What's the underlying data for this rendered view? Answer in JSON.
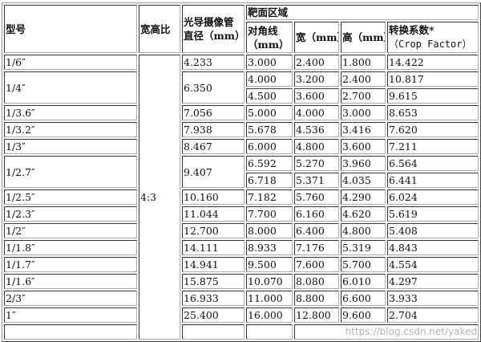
{
  "header": {
    "model": "型号",
    "aspect_ratio": "宽高比",
    "tube_diameter": "光导摄像管直径（mm）",
    "target_area": "靶面区域",
    "diagonal": "对角线（mm）",
    "width": "宽（mm）",
    "height": "高（mm）",
    "crop_factor_line1": "转换系数*",
    "crop_factor_line2": "（Crop Factor）"
  },
  "aspect_ratio_value": "4:3",
  "rows": [
    {
      "model": "1/6″",
      "tube": "4.233",
      "sub": [
        [
          "3.000",
          "2.400",
          "1.800",
          "14.422"
        ]
      ]
    },
    {
      "model": "1/4″",
      "tube": "6.350",
      "sub": [
        [
          "4.000",
          "3.200",
          "2.400",
          "10.817"
        ],
        [
          "4.500",
          "3.600",
          "2.700",
          "9.615"
        ]
      ]
    },
    {
      "model": "1/3.6″",
      "tube": "7.056",
      "sub": [
        [
          "5.000",
          "4.000",
          "3.000",
          "8.653"
        ]
      ]
    },
    {
      "model": "1/3.2″",
      "tube": "7.938",
      "sub": [
        [
          "5.678",
          "4.536",
          "3.416",
          "7.620"
        ]
      ]
    },
    {
      "model": "1/3″",
      "tube": "8.467",
      "sub": [
        [
          "6.000",
          "4.800",
          "3.600",
          "7.211"
        ]
      ]
    },
    {
      "model": "1/2.7″",
      "tube": "9.407",
      "sub": [
        [
          "6.592",
          "5.270",
          "3.960",
          "6.564"
        ],
        [
          "6.718",
          "5.371",
          "4.035",
          "6.441"
        ]
      ]
    },
    {
      "model": "1/2.5″",
      "tube": "10.160",
      "sub": [
        [
          "7.182",
          "5.760",
          "4.290",
          "6.024"
        ]
      ]
    },
    {
      "model": "1/2.3″",
      "tube": "11.044",
      "sub": [
        [
          "7.700",
          "6.160",
          "4.620",
          "5.619"
        ]
      ]
    },
    {
      "model": "1/2″",
      "tube": "12.700",
      "sub": [
        [
          "8.000",
          "6.400",
          "4.800",
          "5.408"
        ]
      ]
    },
    {
      "model": "1/1.8″",
      "tube": "14.111",
      "sub": [
        [
          "8.933",
          "7.176",
          "5.319",
          "4.843"
        ]
      ]
    },
    {
      "model": "1/1.7″",
      "tube": "14.941",
      "sub": [
        [
          "9.500",
          "7.600",
          "5.700",
          "4.554"
        ]
      ]
    },
    {
      "model": "1/1.6″",
      "tube": "15.875",
      "sub": [
        [
          "10.070",
          "8.080",
          "6.010",
          "4.297"
        ]
      ]
    },
    {
      "model": "2/3″",
      "tube": "16.933",
      "sub": [
        [
          "11.000",
          "8.800",
          "6.600",
          "3.933"
        ]
      ]
    },
    {
      "model": "1″",
      "tube": "25.400",
      "sub": [
        [
          "16.000",
          "12.800",
          "9.600",
          "2.704"
        ]
      ]
    }
  ],
  "watermark": "https://blog.csdn.net/yaked"
}
